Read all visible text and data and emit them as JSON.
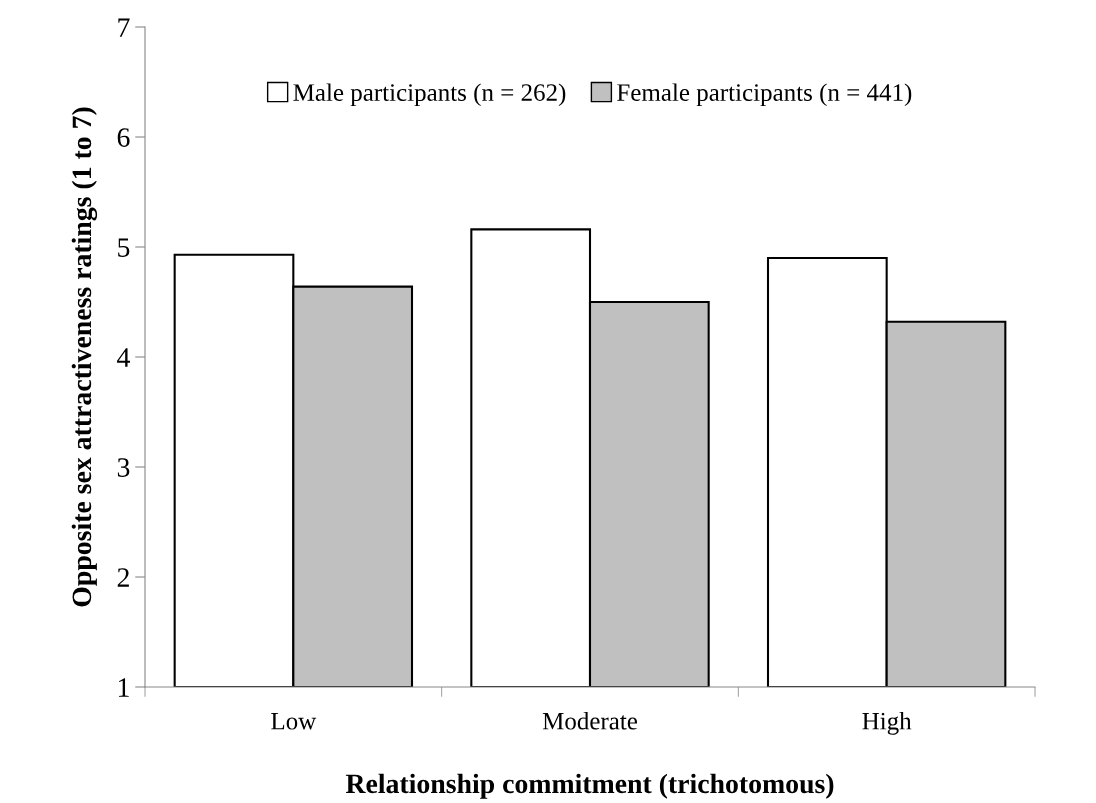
{
  "chart_data": {
    "type": "bar",
    "xlabel": "Relationship commitment (trichotomous)",
    "ylabel": "Opposite sex attractiveness ratings (1 to 7)",
    "categories": [
      "Low",
      "Moderate",
      "High"
    ],
    "series": [
      {
        "name": "Male participants (n = 262)",
        "color": "#ffffff",
        "values": [
          4.93,
          5.16,
          4.9
        ]
      },
      {
        "name": "Female participants (n = 441)",
        "color": "#c0c0c0",
        "values": [
          4.64,
          4.5,
          4.32
        ]
      }
    ],
    "ylim": [
      1,
      7
    ],
    "yticks": [
      1,
      2,
      3,
      4,
      5,
      6,
      7
    ],
    "grid": false,
    "legend": "top"
  }
}
